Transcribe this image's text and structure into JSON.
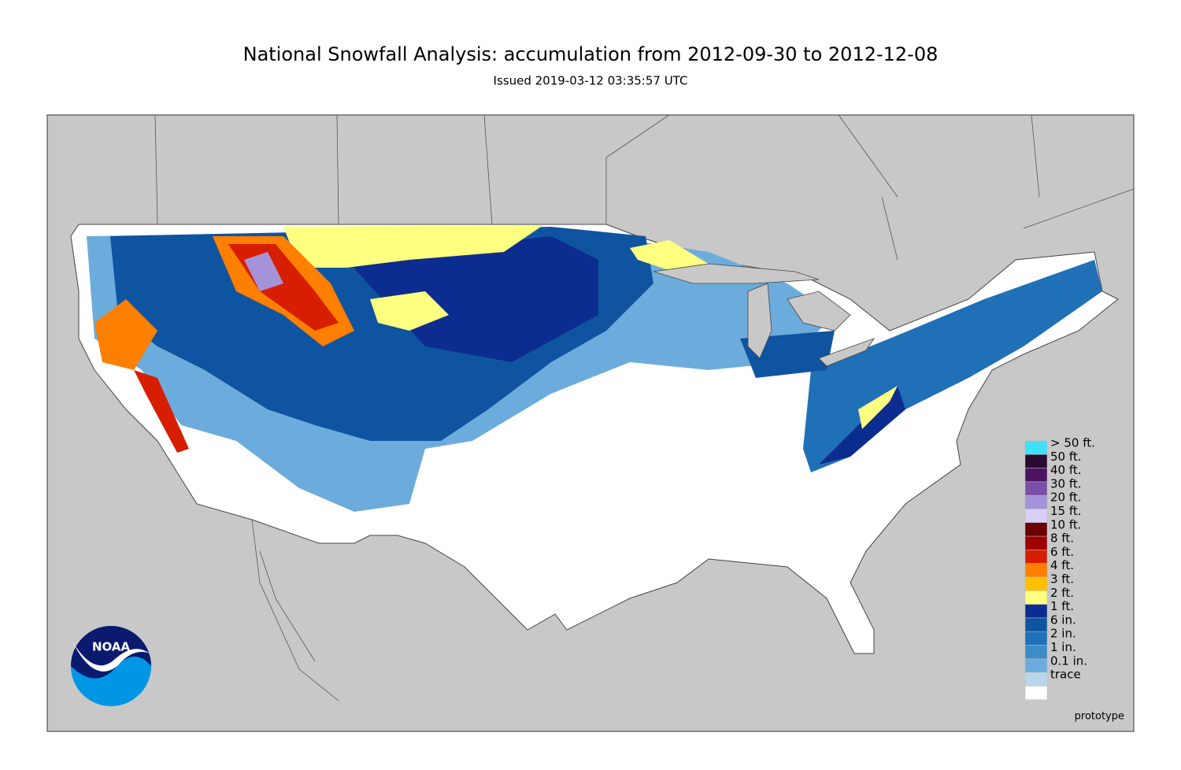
{
  "header": {
    "title": "National Snowfall Analysis: accumulation from 2012-09-30 to 2012-12-08",
    "subtitle": "Issued 2019-03-12 03:35:57 UTC"
  },
  "legend": {
    "items": [
      {
        "label": "> 50 ft.",
        "color": "#40e0f8"
      },
      {
        "label": "50 ft.",
        "color": "#2a0a2e"
      },
      {
        "label": "40 ft.",
        "color": "#4a1462"
      },
      {
        "label": "30 ft.",
        "color": "#7b4fa8"
      },
      {
        "label": "20 ft.",
        "color": "#a493d8"
      },
      {
        "label": "15 ft.",
        "color": "#d8d0f8"
      },
      {
        "label": "10 ft.",
        "color": "#6a0000"
      },
      {
        "label": "8 ft.",
        "color": "#a00000"
      },
      {
        "label": "6 ft.",
        "color": "#d81e00"
      },
      {
        "label": "4 ft.",
        "color": "#ff7f00"
      },
      {
        "label": "3 ft.",
        "color": "#ffc000"
      },
      {
        "label": "2 ft.",
        "color": "#ffff80"
      },
      {
        "label": "1 ft.",
        "color": "#0c2d8f"
      },
      {
        "label": "6 in.",
        "color": "#0f54a0"
      },
      {
        "label": "2 in.",
        "color": "#2070b8"
      },
      {
        "label": "1 in.",
        "color": "#3d8cc8"
      },
      {
        "label": "0.1 in.",
        "color": "#6cacdc"
      },
      {
        "label": "trace",
        "color": "#b8d6ea"
      }
    ]
  },
  "logo": {
    "text": "NOAA"
  },
  "footer": {
    "note": "prototype"
  }
}
